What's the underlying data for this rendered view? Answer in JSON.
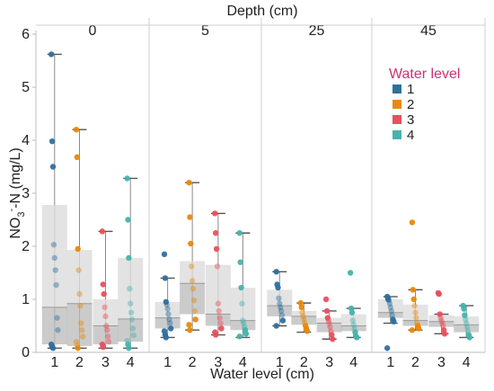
{
  "chart_data": {
    "type": "box",
    "facet_title": "Depth (cm)",
    "facets": [
      "0",
      "5",
      "25",
      "45"
    ],
    "categories": [
      "1",
      "2",
      "3",
      "4"
    ],
    "xlabel": "Water level (cm)",
    "ylabel": {
      "prefix": "NO",
      "sub": "3",
      "sup": "-",
      "suffix": "-N (mg/L)"
    },
    "ylim": [
      0,
      6
    ],
    "yticks": [
      0,
      1,
      2,
      3,
      4,
      5,
      6
    ],
    "legend": {
      "title": "Water level",
      "position": "right",
      "entries": [
        {
          "label": "1",
          "color": "#2e6f9e"
        },
        {
          "label": "2",
          "color": "#e8890c"
        },
        {
          "label": "3",
          "color": "#e8505b"
        },
        {
          "label": "4",
          "color": "#45b3ac"
        }
      ]
    },
    "colors": [
      "#2e6f9e",
      "#e8890c",
      "#e8505b",
      "#45b3ac"
    ],
    "boxes": [
      [
        {
          "min": 0.08,
          "q1": 0.15,
          "median": 0.85,
          "q3": 2.78,
          "max": 5.62,
          "points": [
            5.62,
            3.98,
            3.5,
            2.03,
            1.78,
            1.55,
            1.27,
            0.65,
            0.42,
            0.15,
            0.1,
            0.08
          ]
        },
        {
          "min": 0.08,
          "q1": 0.12,
          "median": 0.92,
          "q3": 1.93,
          "max": 4.2,
          "points": [
            4.2,
            3.68,
            1.95,
            1.55,
            1.1,
            0.88,
            0.55,
            0.42,
            0.3,
            0.2,
            0.13,
            0.08
          ]
        },
        {
          "min": 0.08,
          "q1": 0.15,
          "median": 0.5,
          "q3": 1.0,
          "max": 2.28,
          "points": [
            2.28,
            1.28,
            1.1,
            0.85,
            0.68,
            0.5,
            0.42,
            0.3,
            0.2,
            0.15,
            0.1
          ]
        },
        {
          "min": 0.08,
          "q1": 0.2,
          "median": 0.63,
          "q3": 1.78,
          "max": 3.28,
          "points": [
            3.28,
            2.5,
            1.78,
            1.2,
            0.92,
            0.75,
            0.62,
            0.45,
            0.32,
            0.22,
            0.15,
            0.08
          ]
        }
      ],
      [
        {
          "min": 0.28,
          "q1": 0.45,
          "median": 0.65,
          "q3": 0.95,
          "max": 1.4,
          "points": [
            1.85,
            1.4,
            0.95,
            0.9,
            0.82,
            0.72,
            0.62,
            0.55,
            0.45,
            0.4,
            0.33,
            0.28
          ]
        },
        {
          "min": 0.42,
          "q1": 0.72,
          "median": 1.3,
          "q3": 1.72,
          "max": 3.2,
          "points": [
            3.2,
            2.55,
            2.05,
            1.62,
            1.35,
            1.2,
            0.98,
            0.78,
            0.62,
            0.52,
            0.42
          ]
        },
        {
          "min": 0.33,
          "q1": 0.5,
          "median": 0.72,
          "q3": 1.65,
          "max": 2.62,
          "points": [
            2.62,
            2.25,
            1.95,
            1.62,
            0.92,
            0.78,
            0.65,
            0.55,
            0.45,
            0.38,
            0.33
          ]
        },
        {
          "min": 0.28,
          "q1": 0.42,
          "median": 0.6,
          "q3": 1.22,
          "max": 2.25,
          "points": [
            2.25,
            1.7,
            1.22,
            0.92,
            0.6,
            0.55,
            0.48,
            0.42,
            0.35,
            0.3
          ]
        }
      ],
      [
        {
          "min": 0.5,
          "q1": 0.68,
          "median": 0.88,
          "q3": 1.18,
          "max": 1.52,
          "points": [
            1.52,
            1.28,
            1.22,
            1.02,
            0.92,
            0.85,
            0.78,
            0.7,
            0.6,
            0.5
          ]
        },
        {
          "min": 0.38,
          "q1": 0.52,
          "median": 0.68,
          "q3": 0.78,
          "max": 0.93,
          "points": [
            0.93,
            0.85,
            0.75,
            0.68,
            0.62,
            0.55,
            0.5,
            0.45,
            0.4
          ]
        },
        {
          "min": 0.25,
          "q1": 0.38,
          "median": 0.55,
          "q3": 0.65,
          "max": 0.78,
          "points": [
            1.0,
            0.78,
            0.65,
            0.6,
            0.55,
            0.48,
            0.4,
            0.33,
            0.25
          ]
        },
        {
          "min": 0.28,
          "q1": 0.4,
          "median": 0.5,
          "q3": 0.72,
          "max": 0.83,
          "points": [
            1.5,
            0.83,
            0.75,
            0.6,
            0.52,
            0.45,
            0.38,
            0.3,
            0.28
          ]
        }
      ],
      [
        {
          "min": 0.55,
          "q1": 0.65,
          "median": 0.75,
          "q3": 1.0,
          "max": 1.05,
          "points": [
            1.05,
            1.0,
            0.98,
            0.92,
            0.85,
            0.78,
            0.7,
            0.62,
            0.58,
            0.08
          ]
        },
        {
          "min": 0.42,
          "q1": 0.5,
          "median": 0.6,
          "q3": 0.9,
          "max": 1.18,
          "points": [
            2.45,
            1.18,
            1.0,
            0.88,
            0.75,
            0.65,
            0.55,
            0.5,
            0.45,
            0.42
          ]
        },
        {
          "min": 0.35,
          "q1": 0.48,
          "median": 0.58,
          "q3": 0.7,
          "max": 0.72,
          "points": [
            1.12,
            1.1,
            0.72,
            0.65,
            0.6,
            0.55,
            0.5,
            0.42,
            0.35
          ]
        },
        {
          "min": 0.28,
          "q1": 0.38,
          "median": 0.52,
          "q3": 0.68,
          "max": 0.88,
          "points": [
            0.88,
            0.82,
            0.7,
            0.62,
            0.55,
            0.48,
            0.4,
            0.33,
            0.28
          ]
        }
      ]
    ]
  }
}
